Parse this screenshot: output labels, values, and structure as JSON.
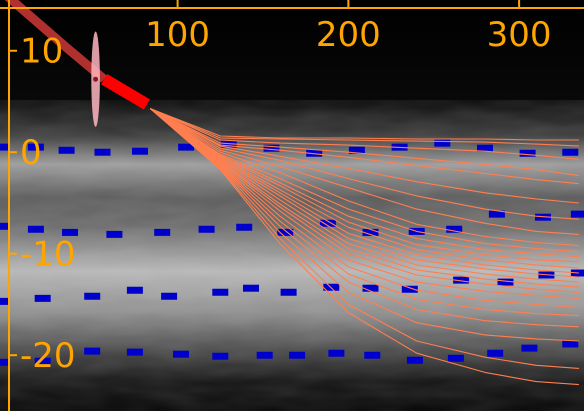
{
  "chart_data": {
    "type": "line",
    "title": "",
    "xlabel": "",
    "ylabel": "",
    "xlim": [
      -4,
      338
    ],
    "ylim": [
      -25.5,
      15
    ],
    "x_ticks": [
      100,
      200,
      300
    ],
    "x_tick_labels": [
      "100",
      "200",
      "300"
    ],
    "y_ticks": [
      10,
      0,
      -10,
      -20
    ],
    "y_tick_labels": [
      "10",
      "0",
      "-10",
      "-20"
    ],
    "grid": false,
    "legend": "none",
    "colors": {
      "background": "#000000",
      "axis": "#ffa500",
      "history_track": "#b03030",
      "recent_track": "#ff0000",
      "forecast_tracks": "#ff7f50",
      "uncertainty_ellipse": "#ffb6c1",
      "lane_markers": "#0000cc"
    },
    "history_track": {
      "x": [
        -4,
        35,
        57
      ],
      "y": [
        16,
        10.3,
        7.2
      ]
    },
    "recent_track": {
      "x": [
        57,
        82
      ],
      "y": [
        7.2,
        4.7
      ]
    },
    "uncertainty_ellipse": {
      "center": [
        52,
        7.2
      ],
      "semi_x": 2.5,
      "semi_y": 4.7
    },
    "forecast_origin": [
      84,
      4.3
    ],
    "forecast_tracks": [
      {
        "y": [
          4.3,
          1.6,
          1.4,
          1.4,
          1.3,
          1.3,
          1.2,
          1.2
        ]
      },
      {
        "y": [
          4.3,
          1.4,
          1.3,
          1.2,
          1.1,
          1.0,
          0.8,
          0.6
        ]
      },
      {
        "y": [
          4.3,
          1.2,
          0.9,
          0.7,
          0.4,
          0.1,
          -0.3,
          -0.7
        ]
      },
      {
        "y": [
          4.3,
          0.9,
          0.5,
          0.0,
          -0.6,
          -1.2,
          -1.7,
          -2.3
        ]
      },
      {
        "y": [
          4.3,
          0.7,
          0.2,
          -0.5,
          -1.3,
          -2.1,
          -2.7,
          -3.1
        ]
      },
      {
        "y": [
          4.3,
          0.6,
          -0.4,
          -1.6,
          -2.9,
          -4.0,
          -4.6,
          -5.0
        ]
      },
      {
        "y": [
          4.3,
          0.4,
          -0.8,
          -2.6,
          -4.3,
          -5.6,
          -6.3,
          -6.6
        ]
      },
      {
        "y": [
          4.3,
          0.2,
          -1.4,
          -3.5,
          -5.6,
          -7.0,
          -7.8,
          -8.1
        ]
      },
      {
        "y": [
          4.3,
          0.0,
          -2.0,
          -4.8,
          -7.1,
          -8.3,
          -8.9,
          -9.2
        ]
      },
      {
        "y": [
          4.3,
          -0.2,
          -2.6,
          -5.6,
          -7.8,
          -9.0,
          -9.5,
          -9.8
        ]
      },
      {
        "y": [
          4.3,
          -0.3,
          -3.0,
          -6.3,
          -8.5,
          -9.6,
          -10.0,
          -10.3
        ]
      },
      {
        "y": [
          4.3,
          -0.4,
          -3.3,
          -6.9,
          -9.1,
          -10.1,
          -10.6,
          -10.8
        ]
      },
      {
        "y": [
          4.3,
          -0.5,
          -3.7,
          -7.4,
          -9.6,
          -10.6,
          -11.1,
          -11.4
        ]
      },
      {
        "y": [
          4.3,
          -0.6,
          -4.0,
          -8.0,
          -10.1,
          -11.1,
          -11.6,
          -11.9
        ]
      },
      {
        "y": [
          4.3,
          -0.7,
          -4.3,
          -8.5,
          -10.6,
          -11.5,
          -12.0,
          -12.3
        ]
      },
      {
        "y": [
          4.3,
          -0.8,
          -4.7,
          -9.0,
          -11.1,
          -12.0,
          -12.5,
          -12.8
        ]
      },
      {
        "y": [
          4.3,
          -0.9,
          -5.1,
          -9.5,
          -11.6,
          -12.5,
          -13.0,
          -13.3
        ]
      },
      {
        "y": [
          4.3,
          -1.0,
          -5.4,
          -10.0,
          -12.1,
          -13.0,
          -13.5,
          -13.8
        ]
      },
      {
        "y": [
          4.3,
          -1.1,
          -5.8,
          -10.6,
          -12.8,
          -13.7,
          -14.1,
          -14.4
        ]
      },
      {
        "y": [
          4.3,
          -1.2,
          -6.3,
          -11.3,
          -13.6,
          -14.6,
          -15.0,
          -15.3
        ]
      },
      {
        "y": [
          4.3,
          -1.3,
          -6.8,
          -12.0,
          -14.5,
          -15.5,
          -15.9,
          -16.1
        ]
      },
      {
        "y": [
          4.3,
          -1.4,
          -7.3,
          -12.8,
          -15.5,
          -16.6,
          -17.0,
          -17.2
        ]
      },
      {
        "y": [
          4.3,
          -1.5,
          -7.9,
          -13.8,
          -16.8,
          -18.0,
          -18.4,
          -18.6
        ]
      },
      {
        "y": [
          4.3,
          -1.6,
          -8.5,
          -15.0,
          -18.6,
          -20.2,
          -21.0,
          -21.3
        ]
      },
      {
        "y": [
          4.3,
          -1.7,
          -9.0,
          -15.8,
          -19.8,
          -21.7,
          -22.6,
          -22.9
        ]
      }
    ],
    "forecast_x": [
      84,
      125,
      160,
      200,
      240,
      280,
      310,
      335
    ],
    "lane_marker_rows": [
      {
        "x": [
          -4,
          17,
          35,
          56,
          78,
          105,
          130,
          155,
          180,
          205,
          230,
          255,
          280,
          305,
          330
        ],
        "y": [
          0.5,
          0.5,
          0.2,
          0.0,
          0.1,
          0.5,
          0.8,
          0.4,
          -0.1,
          0.2,
          0.5,
          0.9,
          0.4,
          -0.1,
          0.0
        ]
      },
      {
        "x": [
          -4,
          17,
          37,
          63,
          91,
          117,
          139,
          163,
          188,
          213,
          240,
          262,
          287,
          314,
          335
        ],
        "y": [
          -7.3,
          -7.6,
          -7.9,
          -8.1,
          -7.9,
          -7.6,
          -7.4,
          -7.9,
          -7.0,
          -7.9,
          -7.8,
          -7.6,
          -6.1,
          -6.4,
          -6.1
        ]
      },
      {
        "x": [
          -4,
          21,
          50,
          75,
          95,
          125,
          143,
          165,
          190,
          213,
          236,
          266,
          292,
          316,
          335
        ],
        "y": [
          -14.7,
          -14.4,
          -14.2,
          -13.6,
          -14.2,
          -13.8,
          -13.4,
          -13.8,
          -13.3,
          -13.4,
          -13.5,
          -12.6,
          -12.8,
          -12.1,
          -11.9
        ]
      },
      {
        "x": [
          -4,
          21,
          50,
          75,
          102,
          125,
          151,
          170,
          193,
          214,
          239,
          263,
          286,
          306,
          330
        ],
        "y": [
          -20.7,
          -20.6,
          -19.6,
          -19.7,
          -19.9,
          -20.1,
          -20.0,
          -20.0,
          -19.8,
          -20.0,
          -20.5,
          -20.3,
          -19.8,
          -19.3,
          -18.9
        ]
      }
    ]
  }
}
